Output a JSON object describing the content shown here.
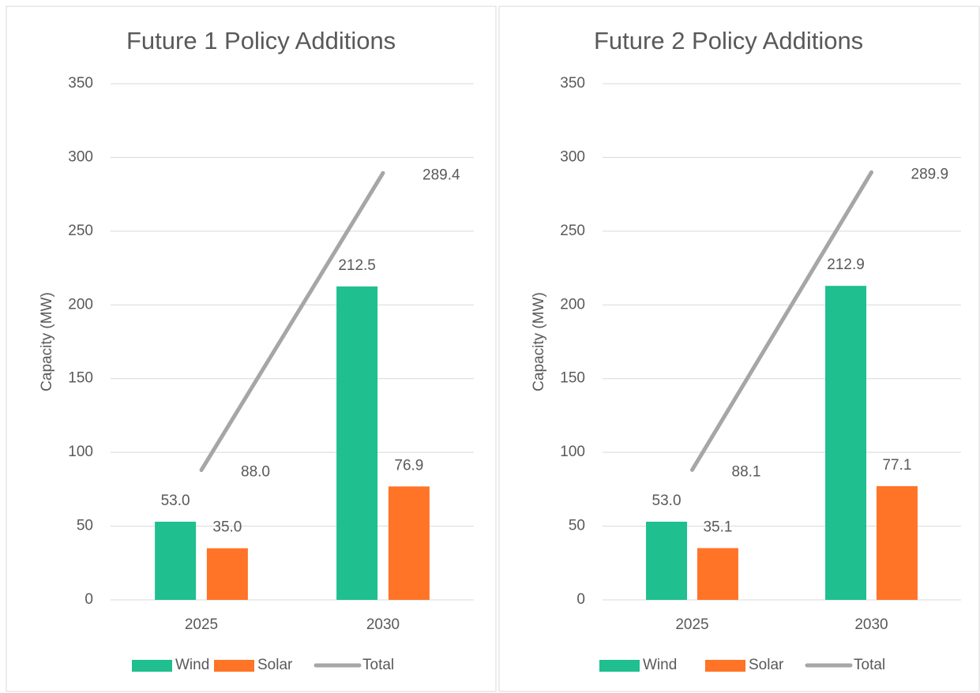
{
  "chart_data": [
    {
      "type": "bar",
      "title": "Future 1 Policy Additions",
      "y_label": "Capacity (MW)",
      "categories": [
        "2025",
        "2030"
      ],
      "series": [
        {
          "name": "Wind",
          "type": "bar",
          "color": "#1fbf8f",
          "values": [
            53.0,
            212.5
          ],
          "value_labels": [
            "53.0",
            "212.5"
          ]
        },
        {
          "name": "Solar",
          "type": "bar",
          "color": "#ff7426",
          "values": [
            35.0,
            76.9
          ],
          "value_labels": [
            "35.0",
            "76.9"
          ]
        },
        {
          "name": "Total",
          "type": "line",
          "color": "#a6a6a6",
          "values": [
            88.0,
            289.4
          ],
          "value_labels": [
            "88.0",
            "289.4"
          ]
        }
      ],
      "ylim": [
        0,
        350
      ],
      "yticks": [
        0,
        50,
        100,
        150,
        200,
        250,
        300,
        350
      ],
      "grid": true,
      "legend": "bottom"
    },
    {
      "type": "bar",
      "title": "Future 2 Policy Additions",
      "y_label": "Capacity (MW)",
      "categories": [
        "2025",
        "2030"
      ],
      "series": [
        {
          "name": "Wind",
          "type": "bar",
          "color": "#1fbf8f",
          "values": [
            53.0,
            212.9
          ],
          "value_labels": [
            "53.0",
            "212.9"
          ]
        },
        {
          "name": "Solar",
          "type": "bar",
          "color": "#ff7426",
          "values": [
            35.1,
            77.1
          ],
          "value_labels": [
            "35.1",
            "77.1"
          ]
        },
        {
          "name": "Total",
          "type": "line",
          "color": "#a6a6a6",
          "values": [
            88.1,
            289.9
          ],
          "value_labels": [
            "88.1",
            "289.9"
          ]
        }
      ],
      "ylim": [
        0,
        350
      ],
      "yticks": [
        0,
        50,
        100,
        150,
        200,
        250,
        300,
        350
      ],
      "grid": true,
      "legend": "bottom"
    }
  ]
}
